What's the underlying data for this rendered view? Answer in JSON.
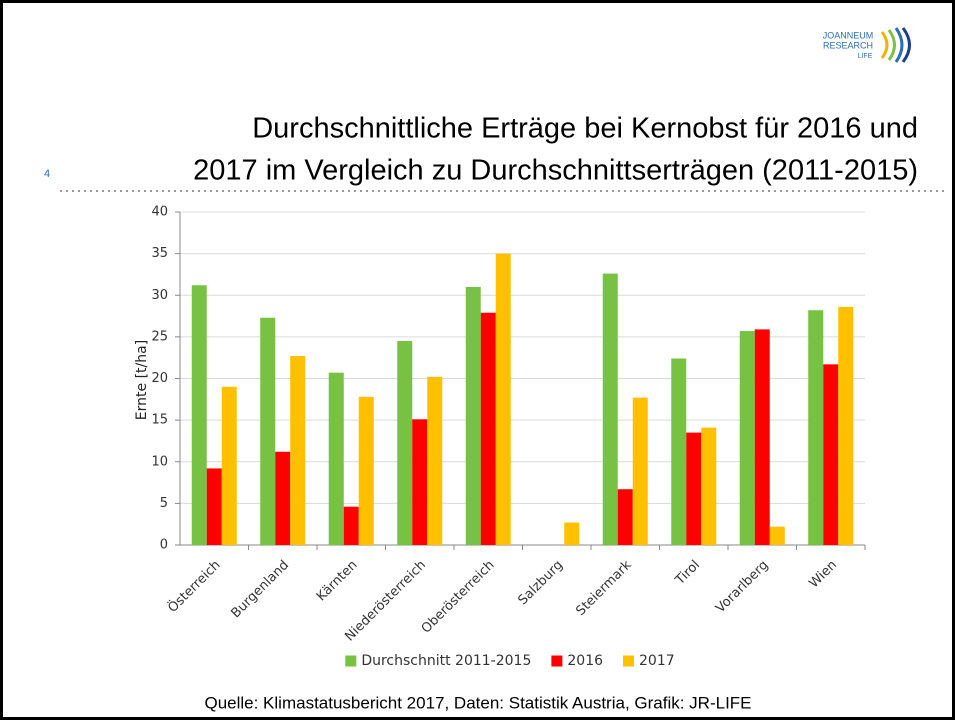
{
  "slide_number": "4",
  "logo": {
    "line1": "JOANNEUM",
    "line2": "RESEARCH",
    "line3": "LIFE"
  },
  "source": "Quelle: Klimastatusbericht 2017, Daten: Statistik Austria, Grafik: JR-LIFE",
  "chart_data": {
    "type": "bar",
    "title": [
      "Durchschnittliche Erträge bei Kernobst für 2016 und",
      "2017 im Vergleich zu Durchschnittserträgen (2011-2015)"
    ],
    "y_label": "Ernte [t/ha]",
    "categories": [
      "Österreich",
      "Burgenland",
      "Kärnten",
      "Niederösterreich",
      "Oberösterreich",
      "Salzburg",
      "Steiermark",
      "Tirol",
      "Vorarlberg",
      "Wien"
    ],
    "series": [
      {
        "name": "Durchschnitt 2011-2015",
        "color": "#77c143",
        "values": [
          31.2,
          27.3,
          20.7,
          24.5,
          31,
          null,
          32.6,
          22.4,
          25.7,
          28.2
        ]
      },
      {
        "name": "2016",
        "color": "#ff0000",
        "values": [
          9.2,
          11.2,
          4.6,
          15.1,
          27.9,
          null,
          6.7,
          13.5,
          25.9,
          21.7
        ]
      },
      {
        "name": "2017",
        "color": "#ffc000",
        "values": [
          19,
          22.7,
          17.8,
          20.2,
          35,
          2.7,
          17.7,
          14.1,
          2.2,
          28.6
        ]
      }
    ],
    "ylim": [
      0,
      40
    ],
    "yticks": [
      0,
      5,
      10,
      15,
      20,
      25,
      30,
      35,
      40
    ],
    "grid": true,
    "legend": "bottom"
  }
}
